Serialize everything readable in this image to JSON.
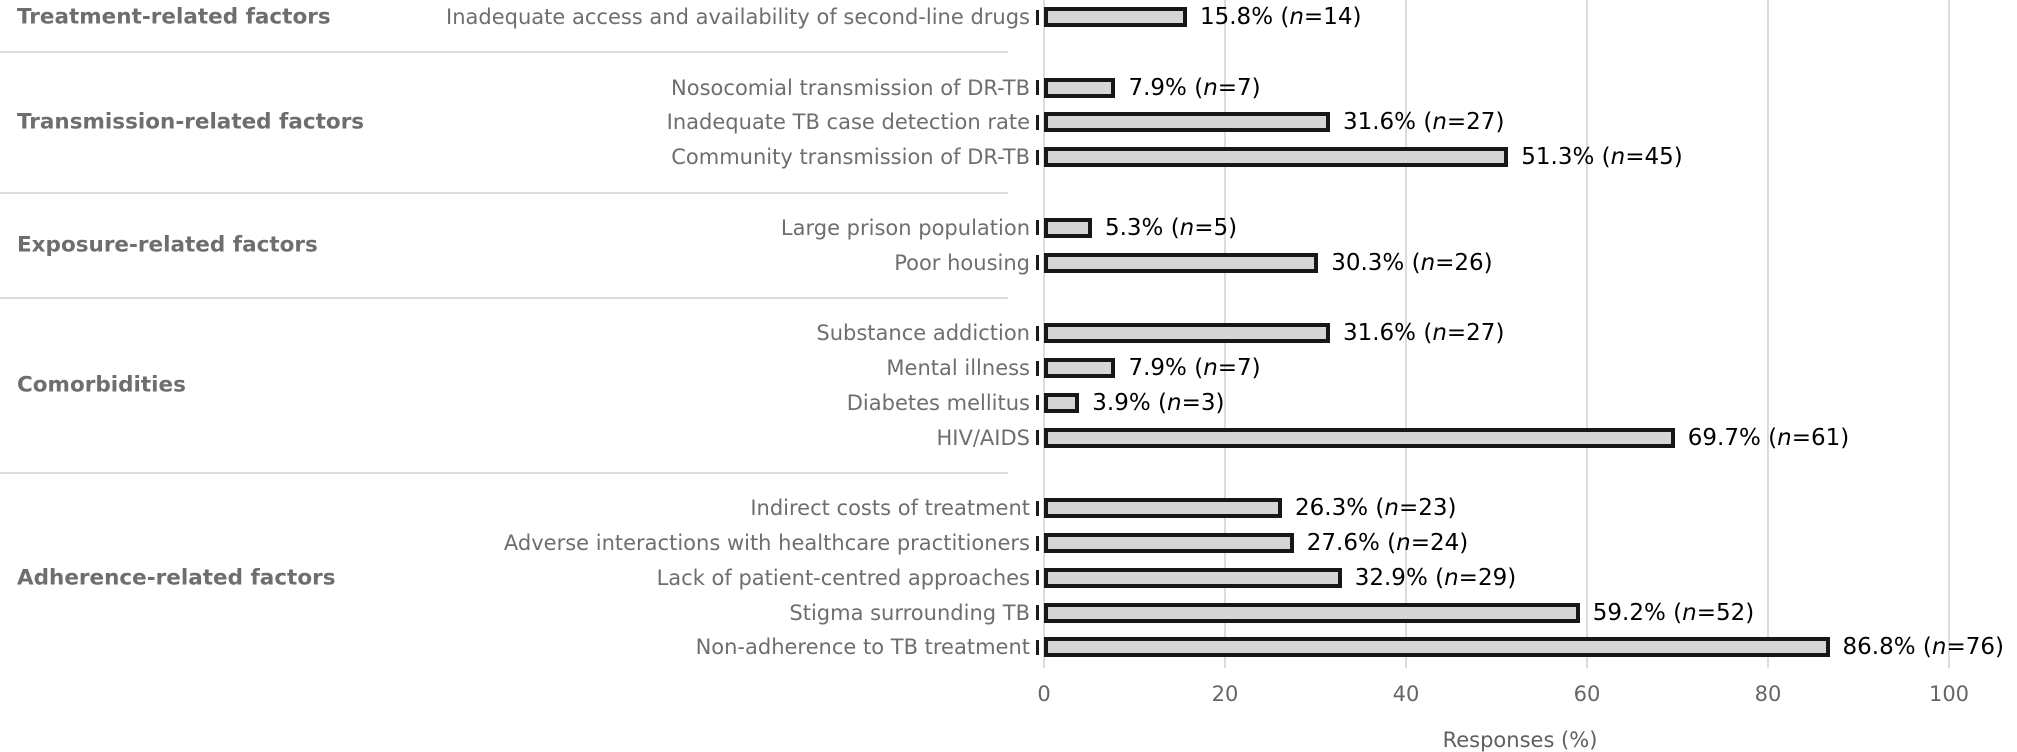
{
  "chart_data": {
    "type": "bar",
    "orientation": "horizontal",
    "title": "",
    "xlabel": "Responses (%)",
    "xlim": [
      0,
      100
    ],
    "xticks": [
      0,
      20,
      40,
      60,
      80,
      100
    ],
    "grid": "vertical-light",
    "legend": "none",
    "bar_fill": "#d5d5d5",
    "bar_border": "#171717",
    "value_label_template": "{pct}% (n={n})",
    "groups": [
      {
        "label": "Treatment-related factors",
        "items": [
          {
            "label": "Inadequate access and availability of second-line drugs",
            "pct": 15.8,
            "n": 14
          }
        ]
      },
      {
        "label": "Transmission-related factors",
        "items": [
          {
            "label": "Nosocomial transmission of DR-TB",
            "pct": 7.9,
            "n": 7
          },
          {
            "label": "Inadequate TB case detection rate",
            "pct": 31.6,
            "n": 27
          },
          {
            "label": "Community transmission of DR-TB",
            "pct": 51.3,
            "n": 45
          }
        ]
      },
      {
        "label": "Exposure-related factors",
        "items": [
          {
            "label": "Large prison population",
            "pct": 5.3,
            "n": 5
          },
          {
            "label": "Poor housing",
            "pct": 30.3,
            "n": 26
          }
        ]
      },
      {
        "label": "Comorbidities",
        "items": [
          {
            "label": "Substance addiction",
            "pct": 31.6,
            "n": 27
          },
          {
            "label": "Mental illness",
            "pct": 7.9,
            "n": 7
          },
          {
            "label": "Diabetes mellitus",
            "pct": 3.9,
            "n": 3
          },
          {
            "label": "HIV/AIDS",
            "pct": 69.7,
            "n": 61
          }
        ]
      },
      {
        "label": "Adherence-related factors",
        "items": [
          {
            "label": "Indirect costs of treatment",
            "pct": 26.3,
            "n": 23
          },
          {
            "label": "Adverse interactions with healthcare practitioners",
            "pct": 27.6,
            "n": 24
          },
          {
            "label": "Lack of patient-centred approaches",
            "pct": 32.9,
            "n": 29
          },
          {
            "label": "Stigma surrounding TB",
            "pct": 59.2,
            "n": 52
          },
          {
            "label": "Non-adherence to TB treatment",
            "pct": 86.8,
            "n": 76
          }
        ]
      }
    ]
  }
}
